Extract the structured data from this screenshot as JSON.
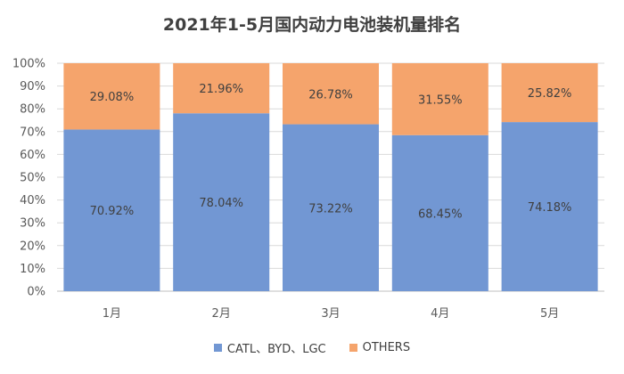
{
  "chart_data": {
    "type": "bar",
    "stacked": true,
    "title": "2021年1-5月国内动力电池装机量排名",
    "categories": [
      "1月",
      "2月",
      "3月",
      "4月",
      "5月"
    ],
    "series": [
      {
        "name": "CATL、BYD、LGC",
        "values": [
          70.92,
          78.04,
          73.22,
          68.45,
          74.18
        ],
        "labels": [
          "70.92%",
          "78.04%",
          "73.22%",
          "68.45%",
          "74.18%"
        ],
        "color": "#7297d3"
      },
      {
        "name": "OTHERS",
        "values": [
          29.08,
          21.96,
          26.78,
          31.55,
          25.82
        ],
        "labels": [
          "29.08%",
          "21.96%",
          "26.78%",
          "31.55%",
          "25.82%"
        ],
        "color": "#f5a46c"
      }
    ],
    "ylim": [
      0,
      100
    ],
    "yticks": [
      "0%",
      "10%",
      "20%",
      "30%",
      "40%",
      "50%",
      "60%",
      "70%",
      "80%",
      "90%",
      "100%"
    ],
    "grid": true,
    "legend": "bottom"
  }
}
